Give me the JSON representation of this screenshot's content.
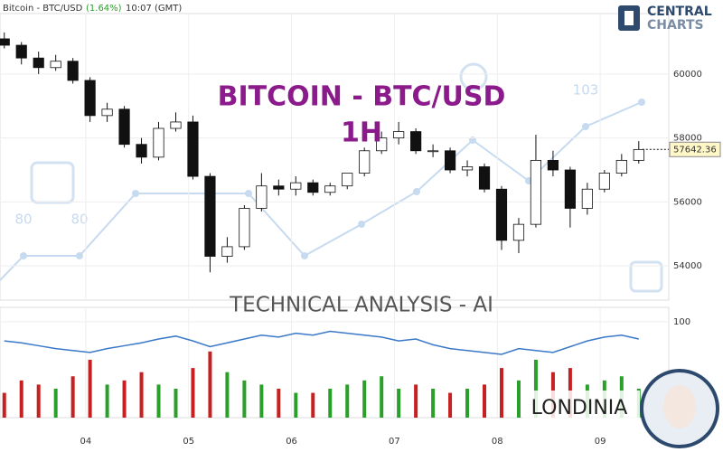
{
  "header": {
    "instrument": "Bitcoin - BTC/USD",
    "change": "(1.64%)",
    "time": "10:07 (GMT)"
  },
  "branding": {
    "logo_top": "CENTRAL",
    "logo_bottom": "CHARTS",
    "watermark": "TECHNICAL  ANALYSIS - AI",
    "signature": "LONDINIA"
  },
  "watermark_labels": [
    "80",
    "80",
    "103"
  ],
  "chart_data": {
    "type": "candlestick",
    "title": "BITCOIN - BTC/USD",
    "subtitle": "1H",
    "x": [
      0,
      4,
      8,
      12,
      16,
      20,
      24,
      28,
      32,
      36,
      40,
      44,
      48,
      52,
      56,
      60,
      64,
      68,
      72,
      76,
      80,
      84,
      88,
      92,
      96,
      100,
      104,
      108,
      112,
      116,
      120,
      124,
      128,
      132,
      136,
      140,
      144,
      148
    ],
    "open": [
      61100,
      60900,
      60500,
      60200,
      60400,
      59800,
      58700,
      58900,
      57800,
      57400,
      58300,
      58500,
      56800,
      54300,
      54600,
      55800,
      56500,
      56400,
      56600,
      56300,
      56500,
      56900,
      57600,
      58000,
      58200,
      57600,
      57600,
      57000,
      57100,
      56400,
      54800,
      55300,
      57300,
      57000,
      55800,
      56400,
      56900,
      57300
    ],
    "high": [
      61300,
      61000,
      60700,
      60600,
      60500,
      59900,
      59100,
      59000,
      58000,
      58500,
      58800,
      58700,
      56900,
      54900,
      55900,
      56900,
      56700,
      56800,
      56700,
      56600,
      56900,
      57700,
      58200,
      58500,
      58300,
      57800,
      57700,
      57300,
      57200,
      56500,
      55500,
      58100,
      57600,
      57100,
      56600,
      57000,
      57500,
      57900
    ],
    "low": [
      60800,
      60300,
      60000,
      60100,
      59700,
      58500,
      58500,
      57700,
      57200,
      57300,
      58200,
      56700,
      53800,
      54100,
      54500,
      55700,
      56200,
      56200,
      56200,
      56200,
      56400,
      56800,
      57500,
      57800,
      57500,
      57400,
      56900,
      56800,
      56300,
      54500,
      54400,
      55200,
      56800,
      55200,
      55600,
      56300,
      56800,
      57200
    ],
    "close": [
      60900,
      60500,
      60200,
      60400,
      59800,
      58700,
      58900,
      57800,
      57400,
      58300,
      58500,
      56800,
      54300,
      54600,
      55800,
      56500,
      56400,
      56600,
      56300,
      56500,
      56900,
      57600,
      58000,
      58200,
      57600,
      57600,
      57000,
      57100,
      56400,
      54800,
      55300,
      57300,
      57000,
      55800,
      56400,
      56900,
      57300,
      57640
    ],
    "up_color": "#ffffff",
    "down_color": "#111111",
    "xlim": [
      -1,
      155
    ],
    "xticks": [
      {
        "value": 19,
        "label": "04"
      },
      {
        "value": 43,
        "label": "05"
      },
      {
        "value": 67,
        "label": "06"
      },
      {
        "value": 91,
        "label": "07"
      },
      {
        "value": 115,
        "label": "08"
      },
      {
        "value": 139,
        "label": "09"
      }
    ],
    "ylim": [
      52930,
      61890
    ],
    "yticks": [
      54000,
      56000,
      58000,
      60000
    ],
    "grid": true,
    "last_price": 57642.36,
    "indicator": {
      "values": [
        80,
        78,
        75,
        72,
        70,
        68,
        72,
        75,
        78,
        82,
        85,
        80,
        74,
        78,
        82,
        86,
        84,
        88,
        86,
        90,
        88,
        86,
        84,
        80,
        82,
        76,
        72,
        70,
        68,
        66,
        72,
        70,
        68,
        74,
        80,
        84,
        86,
        82
      ],
      "color": "#3a78c8",
      "ylim": [
        0,
        115
      ],
      "yticks": [
        100
      ]
    },
    "volume": {
      "values": [
        30,
        45,
        40,
        35,
        50,
        70,
        40,
        45,
        55,
        40,
        35,
        60,
        80,
        55,
        45,
        40,
        35,
        30,
        30,
        35,
        40,
        45,
        50,
        35,
        40,
        35,
        30,
        35,
        40,
        60,
        45,
        70,
        55,
        60,
        40,
        45,
        50,
        35
      ],
      "ylim": [
        0,
        100
      ],
      "up_color": "#2aa02a",
      "down_color": "#c62020"
    }
  }
}
